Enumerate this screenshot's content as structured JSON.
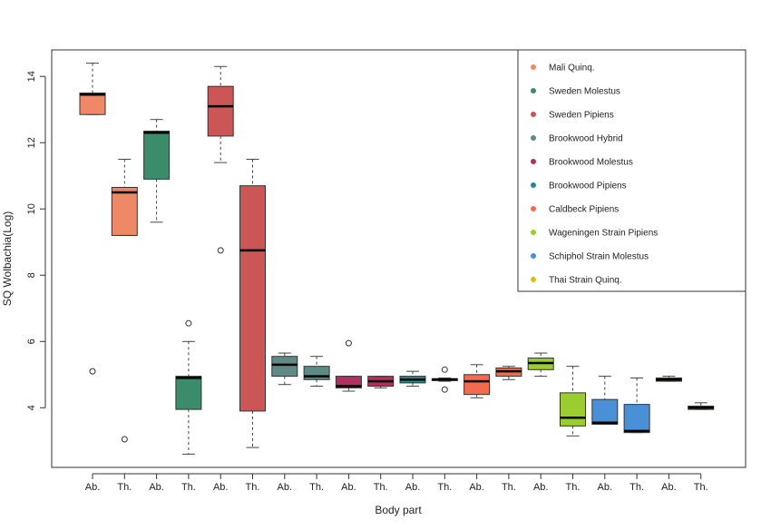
{
  "chart_data": {
    "type": "box",
    "xlabel": "Body part",
    "ylabel": "SQ Wolbachia(Log)",
    "ylim": [
      2.2,
      14.8
    ],
    "yticks": [
      4,
      6,
      8,
      10,
      12,
      14
    ],
    "legend_position": "top-right",
    "legend": [
      {
        "name": "Mali Quinq.",
        "color": "#ee8866"
      },
      {
        "name": "Sweden Molestus",
        "color": "#3a8c6a"
      },
      {
        "name": "Sweden Pipiens",
        "color": "#cc5555"
      },
      {
        "name": "Brookwood Hybrid",
        "color": "#5f8a86"
      },
      {
        "name": "Brookwood Molestus",
        "color": "#b03060"
      },
      {
        "name": "Brookwood Pipiens",
        "color": "#1f8a86"
      },
      {
        "name": "Caldbeck Pipiens",
        "color": "#f26b4f"
      },
      {
        "name": "Wageningen Strain Pipiens",
        "color": "#9acd32"
      },
      {
        "name": "Schiphol Strain Molestus",
        "color": "#4a90d6"
      },
      {
        "name": "Thai Strain Quinq.",
        "color": "#d4c40f"
      }
    ],
    "boxes": [
      {
        "label": "Ab.",
        "color": "#ee8866",
        "whisker_low": 12.85,
        "q1": 12.85,
        "median": 13.45,
        "q3": 13.5,
        "whisker_high": 14.4,
        "outliers": [
          5.1
        ]
      },
      {
        "label": "Th.",
        "color": "#ee8866",
        "whisker_low": 9.2,
        "q1": 9.2,
        "median": 10.5,
        "q3": 10.65,
        "whisker_high": 11.5,
        "outliers": [
          3.05
        ]
      },
      {
        "label": "Ab.",
        "color": "#3a8c6a",
        "whisker_low": 9.6,
        "q1": 10.9,
        "median": 12.3,
        "q3": 12.35,
        "whisker_high": 12.7,
        "outliers": []
      },
      {
        "label": "Th.",
        "color": "#3a8c6a",
        "whisker_low": 2.6,
        "q1": 3.95,
        "median": 4.9,
        "q3": 4.95,
        "whisker_high": 6.0,
        "outliers": [
          6.55
        ]
      },
      {
        "label": "Ab.",
        "color": "#cc5555",
        "whisker_low": 11.4,
        "q1": 12.2,
        "median": 13.1,
        "q3": 13.7,
        "whisker_high": 14.3,
        "outliers": [
          8.75
        ]
      },
      {
        "label": "Th.",
        "color": "#cc5555",
        "whisker_low": 2.8,
        "q1": 3.9,
        "median": 8.75,
        "q3": 10.7,
        "whisker_high": 11.5,
        "outliers": []
      },
      {
        "label": "Ab.",
        "color": "#5f8a86",
        "whisker_low": 4.7,
        "q1": 4.95,
        "median": 5.3,
        "q3": 5.55,
        "whisker_high": 5.65,
        "outliers": []
      },
      {
        "label": "Th.",
        "color": "#5f8a86",
        "whisker_low": 4.65,
        "q1": 4.85,
        "median": 4.95,
        "q3": 5.25,
        "whisker_high": 5.55,
        "outliers": []
      },
      {
        "label": "Ab.",
        "color": "#b03060",
        "whisker_low": 4.5,
        "q1": 4.6,
        "median": 4.65,
        "q3": 4.95,
        "whisker_high": 4.95,
        "outliers": [
          5.95
        ]
      },
      {
        "label": "Th.",
        "color": "#b03060",
        "whisker_low": 4.6,
        "q1": 4.65,
        "median": 4.8,
        "q3": 4.95,
        "whisker_high": 4.95,
        "outliers": []
      },
      {
        "label": "Ab.",
        "color": "#1f8a86",
        "whisker_low": 4.65,
        "q1": 4.75,
        "median": 4.85,
        "q3": 4.95,
        "whisker_high": 5.1,
        "outliers": []
      },
      {
        "label": "Th.",
        "color": "#1f8a86",
        "whisker_low": 4.8,
        "q1": 4.82,
        "median": 4.85,
        "q3": 4.88,
        "whisker_high": 4.9,
        "outliers": [
          5.15,
          4.55
        ]
      },
      {
        "label": "Ab.",
        "color": "#f26b4f",
        "whisker_low": 4.3,
        "q1": 4.4,
        "median": 4.8,
        "q3": 5.0,
        "whisker_high": 5.3,
        "outliers": []
      },
      {
        "label": "Th.",
        "color": "#f26b4f",
        "whisker_low": 4.85,
        "q1": 4.95,
        "median": 5.1,
        "q3": 5.2,
        "whisker_high": 5.25,
        "outliers": []
      },
      {
        "label": "Ab.",
        "color": "#9acd32",
        "whisker_low": 4.95,
        "q1": 5.15,
        "median": 5.35,
        "q3": 5.5,
        "whisker_high": 5.65,
        "outliers": []
      },
      {
        "label": "Th.",
        "color": "#9acd32",
        "whisker_low": 3.15,
        "q1": 3.45,
        "median": 3.7,
        "q3": 4.45,
        "whisker_high": 5.25,
        "outliers": []
      },
      {
        "label": "Ab.",
        "color": "#4a90d6",
        "whisker_low": 3.5,
        "q1": 3.5,
        "median": 3.55,
        "q3": 4.25,
        "whisker_high": 4.95,
        "outliers": []
      },
      {
        "label": "Th.",
        "color": "#4a90d6",
        "whisker_low": 3.25,
        "q1": 3.25,
        "median": 3.3,
        "q3": 4.1,
        "whisker_high": 4.9,
        "outliers": []
      },
      {
        "label": "Ab.",
        "color": "#d4c40f",
        "whisker_low": 4.8,
        "q1": 4.8,
        "median": 4.85,
        "q3": 4.9,
        "whisker_high": 4.95,
        "outliers": []
      },
      {
        "label": "Th.",
        "color": "#d4c40f",
        "whisker_low": 3.95,
        "q1": 3.95,
        "median": 4.0,
        "q3": 4.05,
        "whisker_high": 4.15,
        "outliers": []
      }
    ]
  }
}
